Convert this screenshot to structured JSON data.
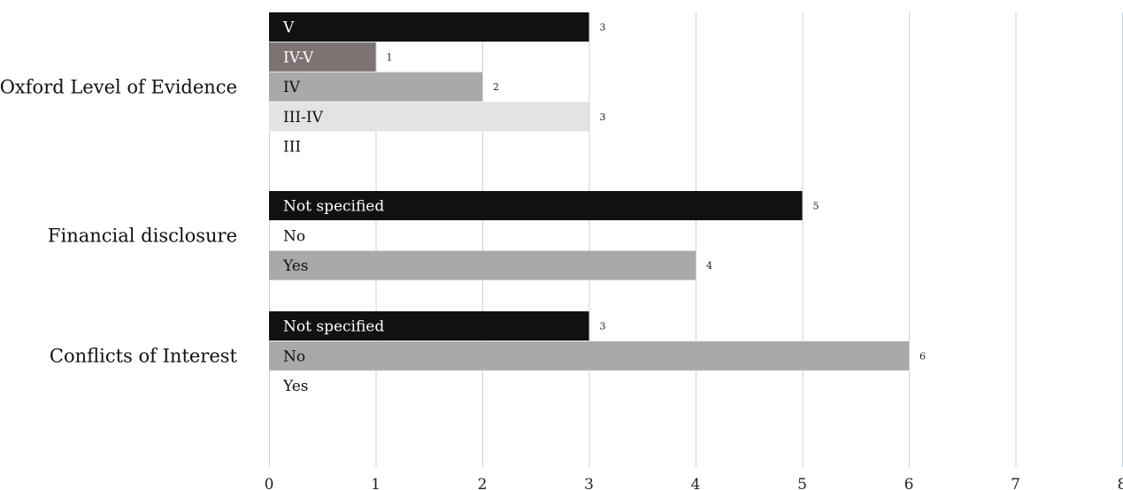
{
  "chart_data": {
    "type": "bar",
    "orientation": "horizontal",
    "xlim": [
      0,
      8
    ],
    "xticks": [
      "0",
      "1",
      "2",
      "3",
      "4",
      "5",
      "6",
      "7",
      "8"
    ],
    "grid": true,
    "groups": [
      {
        "label": "Oxford Level of Evidence",
        "bars": [
          {
            "label": "V",
            "value": 3,
            "value_label": "3",
            "color": "#111111",
            "text_color": "#ffffff"
          },
          {
            "label": "IV-V",
            "value": 1,
            "value_label": "1",
            "color": "#7d7373",
            "text_color": "#ffffff"
          },
          {
            "label": "IV",
            "value": 2,
            "value_label": "2",
            "color": "#a9a9a9",
            "text_color": "#111111"
          },
          {
            "label": "III-IV",
            "value": 3,
            "value_label": "3",
            "color": "#e3e3e3",
            "text_color": "#111111"
          },
          {
            "label": "III",
            "value": 0,
            "value_label": "",
            "color": "#ffffff",
            "text_color": "#111111"
          }
        ]
      },
      {
        "label": "Financial disclosure",
        "bars": [
          {
            "label": "Not specified",
            "value": 5,
            "value_label": "5",
            "color": "#111111",
            "text_color": "#ffffff"
          },
          {
            "label": "No",
            "value": 0,
            "value_label": "",
            "color": "#ffffff",
            "text_color": "#111111"
          },
          {
            "label": "Yes",
            "value": 4,
            "value_label": "4",
            "color": "#a9a9a9",
            "text_color": "#111111"
          }
        ]
      },
      {
        "label": "Conflicts of Interest",
        "bars": [
          {
            "label": "Not specified",
            "value": 3,
            "value_label": "3",
            "color": "#111111",
            "text_color": "#ffffff"
          },
          {
            "label": "No",
            "value": 6,
            "value_label": "6",
            "color": "#a9a9a9",
            "text_color": "#111111"
          },
          {
            "label": "Yes",
            "value": 0,
            "value_label": "",
            "color": "#ffffff",
            "text_color": "#111111"
          }
        ]
      }
    ]
  }
}
